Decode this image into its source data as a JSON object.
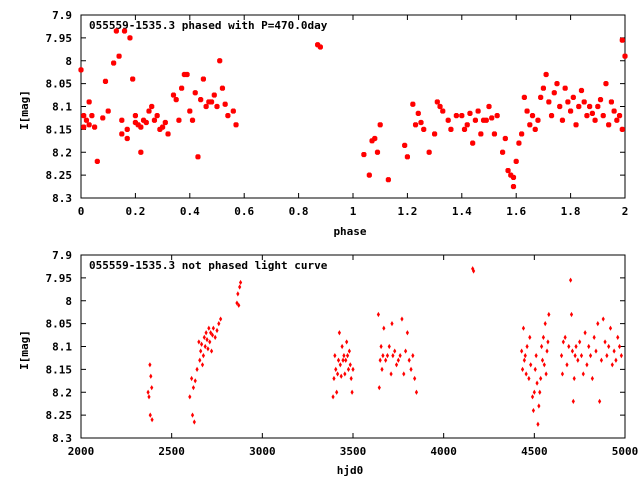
{
  "chart_data": [
    {
      "type": "scatter",
      "title": "055559-1535.3 phased with P=470.0day",
      "xlabel": "phase",
      "ylabel": "I[mag]",
      "xlim": [
        0,
        2
      ],
      "ylim": [
        7.9,
        8.3
      ],
      "y_inverted": true,
      "x_ticks": [
        "0",
        "0.2",
        "0.4",
        "0.6",
        "0.8",
        "1",
        "1.2",
        "1.4",
        "1.6",
        "1.8",
        "2"
      ],
      "y_ticks": [
        "7.9",
        "7.95",
        "8",
        "8.05",
        "8.1",
        "8.15",
        "8.2",
        "8.25",
        "8.3"
      ],
      "marker_color": "#ff0000",
      "grid": false,
      "points": [
        [
          0.0,
          8.02
        ],
        [
          0.01,
          8.12
        ],
        [
          0.01,
          8.145
        ],
        [
          0.02,
          8.13
        ],
        [
          0.03,
          8.14
        ],
        [
          0.03,
          8.09
        ],
        [
          0.04,
          8.12
        ],
        [
          0.05,
          8.145
        ],
        [
          0.06,
          8.22
        ],
        [
          0.08,
          8.125
        ],
        [
          0.09,
          8.045
        ],
        [
          0.1,
          8.11
        ],
        [
          0.12,
          8.005
        ],
        [
          0.13,
          7.935
        ],
        [
          0.14,
          7.99
        ],
        [
          0.15,
          8.13
        ],
        [
          0.15,
          8.16
        ],
        [
          0.16,
          7.935
        ],
        [
          0.17,
          8.15
        ],
        [
          0.17,
          8.17
        ],
        [
          0.18,
          7.95
        ],
        [
          0.19,
          8.04
        ],
        [
          0.2,
          8.12
        ],
        [
          0.2,
          8.135
        ],
        [
          0.21,
          8.14
        ],
        [
          0.22,
          8.145
        ],
        [
          0.22,
          8.2
        ],
        [
          0.23,
          8.13
        ],
        [
          0.24,
          8.135
        ],
        [
          0.25,
          8.11
        ],
        [
          0.26,
          8.1
        ],
        [
          0.27,
          8.13
        ],
        [
          0.28,
          8.12
        ],
        [
          0.29,
          8.15
        ],
        [
          0.3,
          8.145
        ],
        [
          0.31,
          8.135
        ],
        [
          0.32,
          8.16
        ],
        [
          0.34,
          8.075
        ],
        [
          0.35,
          8.085
        ],
        [
          0.36,
          8.13
        ],
        [
          0.37,
          8.06
        ],
        [
          0.38,
          8.03
        ],
        [
          0.39,
          8.03
        ],
        [
          0.4,
          8.11
        ],
        [
          0.41,
          8.13
        ],
        [
          0.42,
          8.07
        ],
        [
          0.43,
          8.21
        ],
        [
          0.44,
          8.085
        ],
        [
          0.45,
          8.04
        ],
        [
          0.46,
          8.1
        ],
        [
          0.47,
          8.09
        ],
        [
          0.48,
          8.09
        ],
        [
          0.49,
          8.075
        ],
        [
          0.5,
          8.1
        ],
        [
          0.51,
          8.0
        ],
        [
          0.52,
          8.06
        ],
        [
          0.53,
          8.095
        ],
        [
          0.54,
          8.12
        ],
        [
          0.56,
          8.11
        ],
        [
          0.57,
          8.14
        ],
        [
          0.87,
          7.965
        ],
        [
          0.88,
          7.97
        ],
        [
          1.04,
          8.205
        ],
        [
          1.06,
          8.25
        ],
        [
          1.07,
          8.175
        ],
        [
          1.08,
          8.17
        ],
        [
          1.09,
          8.2
        ],
        [
          1.1,
          8.14
        ],
        [
          1.13,
          8.26
        ],
        [
          1.19,
          8.185
        ],
        [
          1.2,
          8.21
        ],
        [
          1.22,
          8.095
        ],
        [
          1.23,
          8.14
        ],
        [
          1.24,
          8.115
        ],
        [
          1.25,
          8.135
        ],
        [
          1.26,
          8.15
        ],
        [
          1.28,
          8.2
        ],
        [
          1.3,
          8.16
        ],
        [
          1.31,
          8.09
        ],
        [
          1.32,
          8.1
        ],
        [
          1.33,
          8.11
        ],
        [
          1.35,
          8.13
        ],
        [
          1.36,
          8.15
        ],
        [
          1.38,
          8.12
        ],
        [
          1.4,
          8.12
        ],
        [
          1.41,
          8.15
        ],
        [
          1.42,
          8.14
        ],
        [
          1.43,
          8.115
        ],
        [
          1.44,
          8.18
        ],
        [
          1.45,
          8.13
        ],
        [
          1.46,
          8.11
        ],
        [
          1.47,
          8.16
        ],
        [
          1.48,
          8.13
        ],
        [
          1.49,
          8.13
        ],
        [
          1.5,
          8.1
        ],
        [
          1.51,
          8.125
        ],
        [
          1.52,
          8.16
        ],
        [
          1.53,
          8.12
        ],
        [
          1.55,
          8.2
        ],
        [
          1.56,
          8.17
        ],
        [
          1.57,
          8.24
        ],
        [
          1.58,
          8.25
        ],
        [
          1.59,
          8.275
        ],
        [
          1.59,
          8.255
        ],
        [
          1.6,
          8.22
        ],
        [
          1.61,
          8.18
        ],
        [
          1.62,
          8.16
        ],
        [
          1.63,
          8.08
        ],
        [
          1.64,
          8.11
        ],
        [
          1.65,
          8.14
        ],
        [
          1.66,
          8.12
        ],
        [
          1.67,
          8.15
        ],
        [
          1.68,
          8.13
        ],
        [
          1.69,
          8.08
        ],
        [
          1.7,
          8.06
        ],
        [
          1.71,
          8.03
        ],
        [
          1.72,
          8.09
        ],
        [
          1.73,
          8.12
        ],
        [
          1.74,
          8.07
        ],
        [
          1.75,
          8.05
        ],
        [
          1.76,
          8.1
        ],
        [
          1.77,
          8.13
        ],
        [
          1.78,
          8.06
        ],
        [
          1.79,
          8.09
        ],
        [
          1.8,
          8.11
        ],
        [
          1.81,
          8.08
        ],
        [
          1.82,
          8.14
        ],
        [
          1.83,
          8.1
        ],
        [
          1.84,
          8.065
        ],
        [
          1.85,
          8.09
        ],
        [
          1.86,
          8.12
        ],
        [
          1.87,
          8.1
        ],
        [
          1.88,
          8.115
        ],
        [
          1.89,
          8.13
        ],
        [
          1.9,
          8.1
        ],
        [
          1.91,
          8.085
        ],
        [
          1.92,
          8.12
        ],
        [
          1.93,
          8.05
        ],
        [
          1.94,
          8.14
        ],
        [
          1.95,
          8.09
        ],
        [
          1.96,
          8.11
        ],
        [
          1.97,
          8.13
        ],
        [
          1.98,
          8.12
        ],
        [
          1.99,
          8.15
        ],
        [
          1.99,
          7.955
        ],
        [
          2.0,
          7.99
        ]
      ]
    },
    {
      "type": "scatter",
      "title": "055559-1535.3 not phased light curve",
      "xlabel": "hjd0",
      "ylabel": "I[mag]",
      "xlim": [
        2000,
        5000
      ],
      "ylim": [
        7.9,
        8.3
      ],
      "y_inverted": true,
      "x_ticks": [
        "2000",
        "2500",
        "3000",
        "3500",
        "4000",
        "4500",
        "5000"
      ],
      "y_ticks": [
        "7.9",
        "7.95",
        "8",
        "8.05",
        "8.1",
        "8.15",
        "8.2",
        "8.25",
        "8.3"
      ],
      "marker_color": "#ff0000",
      "grid": false,
      "points": [
        [
          2370,
          8.2
        ],
        [
          2375,
          8.21
        ],
        [
          2380,
          8.14
        ],
        [
          2382,
          8.25
        ],
        [
          2385,
          8.165
        ],
        [
          2390,
          8.19
        ],
        [
          2392,
          8.26
        ],
        [
          2600,
          8.21
        ],
        [
          2610,
          8.17
        ],
        [
          2615,
          8.25
        ],
        [
          2620,
          8.19
        ],
        [
          2625,
          8.265
        ],
        [
          2630,
          8.175
        ],
        [
          2640,
          8.15
        ],
        [
          2650,
          8.09
        ],
        [
          2655,
          8.13
        ],
        [
          2660,
          8.11
        ],
        [
          2665,
          8.095
        ],
        [
          2670,
          8.14
        ],
        [
          2675,
          8.12
        ],
        [
          2680,
          8.08
        ],
        [
          2685,
          8.1
        ],
        [
          2690,
          8.07
        ],
        [
          2695,
          8.085
        ],
        [
          2700,
          8.105
        ],
        [
          2705,
          8.06
        ],
        [
          2710,
          8.09
        ],
        [
          2715,
          8.07
        ],
        [
          2720,
          8.11
        ],
        [
          2725,
          8.075
        ],
        [
          2730,
          8.06
        ],
        [
          2740,
          8.08
        ],
        [
          2750,
          8.065
        ],
        [
          2760,
          8.05
        ],
        [
          2770,
          8.04
        ],
        [
          2860,
          8.005
        ],
        [
          2865,
          7.985
        ],
        [
          2870,
          8.01
        ],
        [
          2875,
          7.97
        ],
        [
          2880,
          7.96
        ],
        [
          3390,
          8.21
        ],
        [
          3395,
          8.17
        ],
        [
          3400,
          8.12
        ],
        [
          3405,
          8.15
        ],
        [
          3410,
          8.2
        ],
        [
          3415,
          8.16
        ],
        [
          3420,
          8.13
        ],
        [
          3425,
          8.07
        ],
        [
          3430,
          8.14
        ],
        [
          3435,
          8.165
        ],
        [
          3440,
          8.1
        ],
        [
          3445,
          8.13
        ],
        [
          3450,
          8.12
        ],
        [
          3455,
          8.16
        ],
        [
          3460,
          8.13
        ],
        [
          3465,
          8.09
        ],
        [
          3470,
          8.12
        ],
        [
          3475,
          8.15
        ],
        [
          3480,
          8.11
        ],
        [
          3485,
          8.14
        ],
        [
          3490,
          8.17
        ],
        [
          3495,
          8.2
        ],
        [
          3500,
          8.15
        ],
        [
          3640,
          8.03
        ],
        [
          3645,
          8.19
        ],
        [
          3650,
          8.13
        ],
        [
          3655,
          8.1
        ],
        [
          3660,
          8.15
        ],
        [
          3665,
          8.12
        ],
        [
          3670,
          8.06
        ],
        [
          3680,
          8.13
        ],
        [
          3690,
          8.12
        ],
        [
          3700,
          8.1
        ],
        [
          3710,
          8.16
        ],
        [
          3715,
          8.05
        ],
        [
          3720,
          8.12
        ],
        [
          3730,
          8.11
        ],
        [
          3740,
          8.14
        ],
        [
          3750,
          8.13
        ],
        [
          3760,
          8.12
        ],
        [
          3770,
          8.04
        ],
        [
          3780,
          8.16
        ],
        [
          3790,
          8.11
        ],
        [
          3800,
          8.07
        ],
        [
          3810,
          8.13
        ],
        [
          3820,
          8.15
        ],
        [
          3830,
          8.12
        ],
        [
          3840,
          8.17
        ],
        [
          3850,
          8.2
        ],
        [
          4160,
          7.93
        ],
        [
          4165,
          7.935
        ],
        [
          4430,
          8.11
        ],
        [
          4435,
          8.15
        ],
        [
          4440,
          8.06
        ],
        [
          4445,
          8.13
        ],
        [
          4450,
          8.12
        ],
        [
          4455,
          8.16
        ],
        [
          4460,
          8.1
        ],
        [
          4470,
          8.17
        ],
        [
          4475,
          8.08
        ],
        [
          4480,
          8.14
        ],
        [
          4490,
          8.21
        ],
        [
          4495,
          8.24
        ],
        [
          4500,
          8.2
        ],
        [
          4505,
          8.15
        ],
        [
          4510,
          8.12
        ],
        [
          4515,
          8.18
        ],
        [
          4520,
          8.27
        ],
        [
          4525,
          8.23
        ],
        [
          4530,
          8.2
        ],
        [
          4535,
          8.17
        ],
        [
          4540,
          8.1
        ],
        [
          4545,
          8.13
        ],
        [
          4550,
          8.08
        ],
        [
          4555,
          8.14
        ],
        [
          4560,
          8.05
        ],
        [
          4565,
          8.16
        ],
        [
          4570,
          8.11
        ],
        [
          4575,
          8.09
        ],
        [
          4580,
          8.03
        ],
        [
          4650,
          8.12
        ],
        [
          4655,
          8.16
        ],
        [
          4660,
          8.09
        ],
        [
          4670,
          8.08
        ],
        [
          4680,
          8.14
        ],
        [
          4690,
          8.1
        ],
        [
          4700,
          7.955
        ],
        [
          4705,
          8.03
        ],
        [
          4710,
          8.11
        ],
        [
          4715,
          8.22
        ],
        [
          4720,
          8.17
        ],
        [
          4725,
          8.12
        ],
        [
          4730,
          8.1
        ],
        [
          4740,
          8.13
        ],
        [
          4750,
          8.09
        ],
        [
          4760,
          8.12
        ],
        [
          4770,
          8.16
        ],
        [
          4780,
          8.07
        ],
        [
          4790,
          8.14
        ],
        [
          4800,
          8.1
        ],
        [
          4810,
          8.12
        ],
        [
          4820,
          8.17
        ],
        [
          4830,
          8.08
        ],
        [
          4840,
          8.11
        ],
        [
          4850,
          8.05
        ],
        [
          4860,
          8.22
        ],
        [
          4870,
          8.13
        ],
        [
          4880,
          8.04
        ],
        [
          4890,
          8.09
        ],
        [
          4900,
          8.12
        ],
        [
          4910,
          8.1
        ],
        [
          4920,
          8.06
        ],
        [
          4930,
          8.14
        ],
        [
          4940,
          8.11
        ],
        [
          4950,
          8.13
        ],
        [
          4960,
          8.08
        ],
        [
          4970,
          8.1
        ],
        [
          4980,
          8.12
        ]
      ]
    }
  ]
}
